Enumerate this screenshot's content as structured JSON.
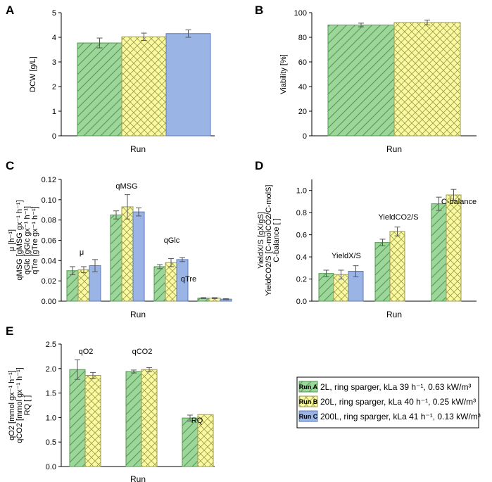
{
  "colors": {
    "run_a_fill": "#9cd69a",
    "run_a_line": "#4f9a4d",
    "run_b_fill": "#fbfa9e",
    "run_b_line": "#9a9a52",
    "run_c_fill": "#9ab4e6",
    "run_c_line": "#5c7ab8",
    "axis": "#000000",
    "error": "#555555"
  },
  "chart_data": [
    {
      "panel": "A",
      "type": "bar",
      "xlabel": "Run",
      "ylabel": "DCW [g/L]",
      "ylim": [
        0,
        5
      ],
      "yticks": [
        "0",
        "1",
        "2",
        "3",
        "4",
        "5"
      ],
      "categories": [
        ""
      ],
      "series": [
        {
          "name": "Run A",
          "values": [
            3.77
          ],
          "errors": [
            0.2
          ]
        },
        {
          "name": "Run B",
          "values": [
            4.02
          ],
          "errors": [
            0.15
          ]
        },
        {
          "name": "Run C",
          "values": [
            4.15
          ],
          "errors": [
            0.15
          ]
        }
      ]
    },
    {
      "panel": "B",
      "type": "bar",
      "xlabel": "Run",
      "ylabel": "Viability [%]",
      "ylim": [
        0,
        100
      ],
      "yticks": [
        "0",
        "20",
        "40",
        "60",
        "80",
        "100"
      ],
      "categories": [
        ""
      ],
      "series": [
        {
          "name": "Run A",
          "values": [
            90.0
          ],
          "errors": [
            1.5
          ]
        },
        {
          "name": "Run B",
          "values": [
            92.0
          ],
          "errors": [
            2.0
          ]
        }
      ]
    },
    {
      "panel": "C",
      "type": "bar",
      "xlabel": "Run",
      "ylabel_lines": [
        "μ [h⁻¹]",
        "qMSG [gMSG gx⁻¹ h⁻¹]",
        "qGlc [gGlc gx⁻¹ h⁻¹]",
        "qTre [gTre gx⁻¹ h⁻¹]"
      ],
      "ylim": [
        0,
        0.12
      ],
      "yticks": [
        "0.00",
        "0.02",
        "0.04",
        "0.06",
        "0.08",
        "0.10",
        "0.12"
      ],
      "categories": [
        "μ",
        "qMSG",
        "qGlc",
        "qTre"
      ],
      "series": [
        {
          "name": "Run A",
          "values": [
            0.03,
            0.085,
            0.034,
            0.003
          ],
          "errors": [
            0.004,
            0.004,
            0.002,
            0.0005
          ]
        },
        {
          "name": "Run B",
          "values": [
            0.031,
            0.093,
            0.038,
            0.003
          ],
          "errors": [
            0.003,
            0.012,
            0.004,
            0.0005
          ]
        },
        {
          "name": "Run C",
          "values": [
            0.035,
            0.088,
            0.041,
            0.002
          ],
          "errors": [
            0.006,
            0.004,
            0.002,
            0.0005
          ]
        }
      ]
    },
    {
      "panel": "D",
      "type": "bar",
      "xlabel": "Run",
      "ylabel_lines": [
        "YieldX/S [gX/gS]",
        "YieldCO2/S [C-molCO2/C-molS]",
        "C-balance [ ]"
      ],
      "ylim": [
        0,
        1.1
      ],
      "yticks": [
        "0.0",
        "0.2",
        "0.4",
        "0.6",
        "0.8",
        "1.0"
      ],
      "categories": [
        "YieldX/S",
        "YieldCO2/S",
        "C-balance"
      ],
      "series": [
        {
          "name": "Run A",
          "values": [
            0.25,
            0.53,
            0.88
          ],
          "errors": [
            0.03,
            0.03,
            0.06
          ]
        },
        {
          "name": "Run B",
          "values": [
            0.24,
            0.63,
            0.96
          ],
          "errors": [
            0.04,
            0.04,
            0.05
          ]
        },
        {
          "name": "Run C",
          "values": [
            0.27,
            null,
            null
          ],
          "errors": [
            0.05,
            null,
            null
          ]
        }
      ]
    },
    {
      "panel": "E",
      "type": "bar",
      "xlabel": "Run",
      "ylabel_lines": [
        "qO2 [mmol gx⁻¹ h⁻¹]",
        "qCO2 [mmol gx⁻¹ h⁻¹]",
        "RQ [ ]"
      ],
      "ylim": [
        0,
        2.5
      ],
      "yticks": [
        "0.0",
        "0.5",
        "1.0",
        "1.5",
        "2.0",
        "2.5"
      ],
      "categories": [
        "qO2",
        "qCO2",
        "RQ"
      ],
      "series": [
        {
          "name": "Run A",
          "values": [
            1.98,
            1.94,
            0.99
          ],
          "errors": [
            0.2,
            0.03,
            0.06
          ]
        },
        {
          "name": "Run B",
          "values": [
            1.86,
            1.98,
            1.06
          ],
          "errors": [
            0.06,
            0.04,
            0.0
          ]
        }
      ]
    }
  ],
  "legend": [
    {
      "key": "Run A",
      "text": "2L, ring sparger, kLa 39 h⁻¹, 0.63 kW/m³"
    },
    {
      "key": "Run B",
      "text": "20L, ring sparger, kLa 40 h⁻¹, 0.25 kW/m³"
    },
    {
      "key": "Run C",
      "text": "200L, ring sparger, kLa 41 h⁻¹, 0.13 kW/m³"
    }
  ]
}
